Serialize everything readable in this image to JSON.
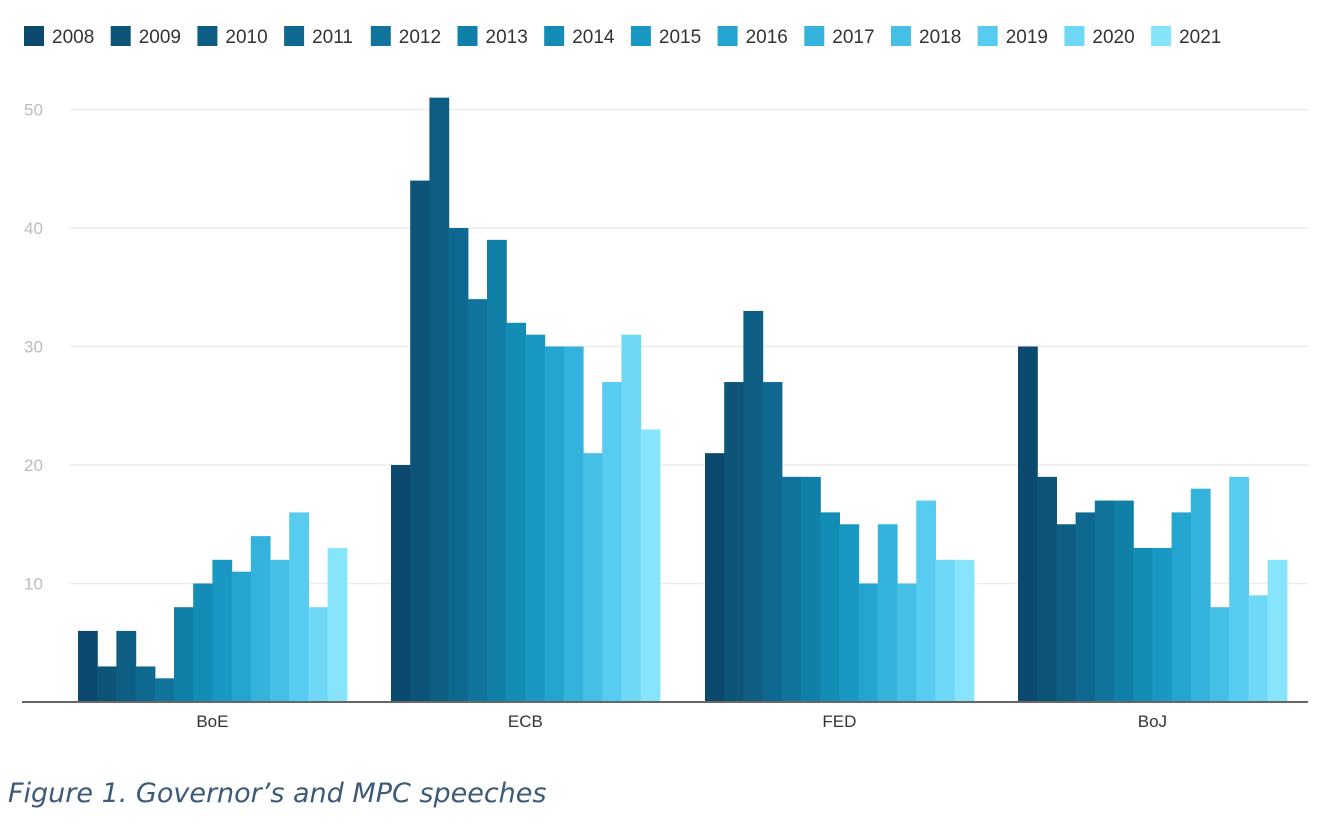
{
  "chart_data": {
    "type": "bar",
    "categories": [
      "BoE",
      "ECB",
      "FED",
      "BoJ"
    ],
    "series": [
      {
        "name": "2008",
        "color": "#0b4a6e",
        "values": [
          6,
          20,
          21,
          30
        ]
      },
      {
        "name": "2009",
        "color": "#0d5479",
        "values": [
          3,
          44,
          27,
          19
        ]
      },
      {
        "name": "2010",
        "color": "#0e5e84",
        "values": [
          6,
          51,
          33,
          15
        ]
      },
      {
        "name": "2011",
        "color": "#0f6890",
        "values": [
          3,
          40,
          27,
          16
        ]
      },
      {
        "name": "2012",
        "color": "#10749d",
        "values": [
          2,
          34,
          19,
          17
        ]
      },
      {
        "name": "2013",
        "color": "#1180a9",
        "values": [
          8,
          39,
          19,
          17
        ]
      },
      {
        "name": "2014",
        "color": "#138cb6",
        "values": [
          10,
          32,
          16,
          13
        ]
      },
      {
        "name": "2015",
        "color": "#1898c3",
        "values": [
          12,
          31,
          15,
          13
        ]
      },
      {
        "name": "2016",
        "color": "#23a5cf",
        "values": [
          11,
          30,
          10,
          16
        ]
      },
      {
        "name": "2017",
        "color": "#33b2db",
        "values": [
          14,
          30,
          15,
          18
        ]
      },
      {
        "name": "2018",
        "color": "#45bfe6",
        "values": [
          12,
          21,
          10,
          8
        ]
      },
      {
        "name": "2019",
        "color": "#58ccf0",
        "values": [
          16,
          27,
          17,
          19
        ]
      },
      {
        "name": "2020",
        "color": "#6ed8f6",
        "values": [
          8,
          31,
          12,
          9
        ]
      },
      {
        "name": "2021",
        "color": "#86e4fb",
        "values": [
          13,
          23,
          12,
          12
        ]
      }
    ],
    "yticks": [
      "10",
      "20",
      "30",
      "40",
      "50"
    ],
    "ylim": [
      0,
      53
    ],
    "grid": true,
    "legend_position": "top-left"
  },
  "caption": "Figure 1. Governor’s and MPC speeches"
}
